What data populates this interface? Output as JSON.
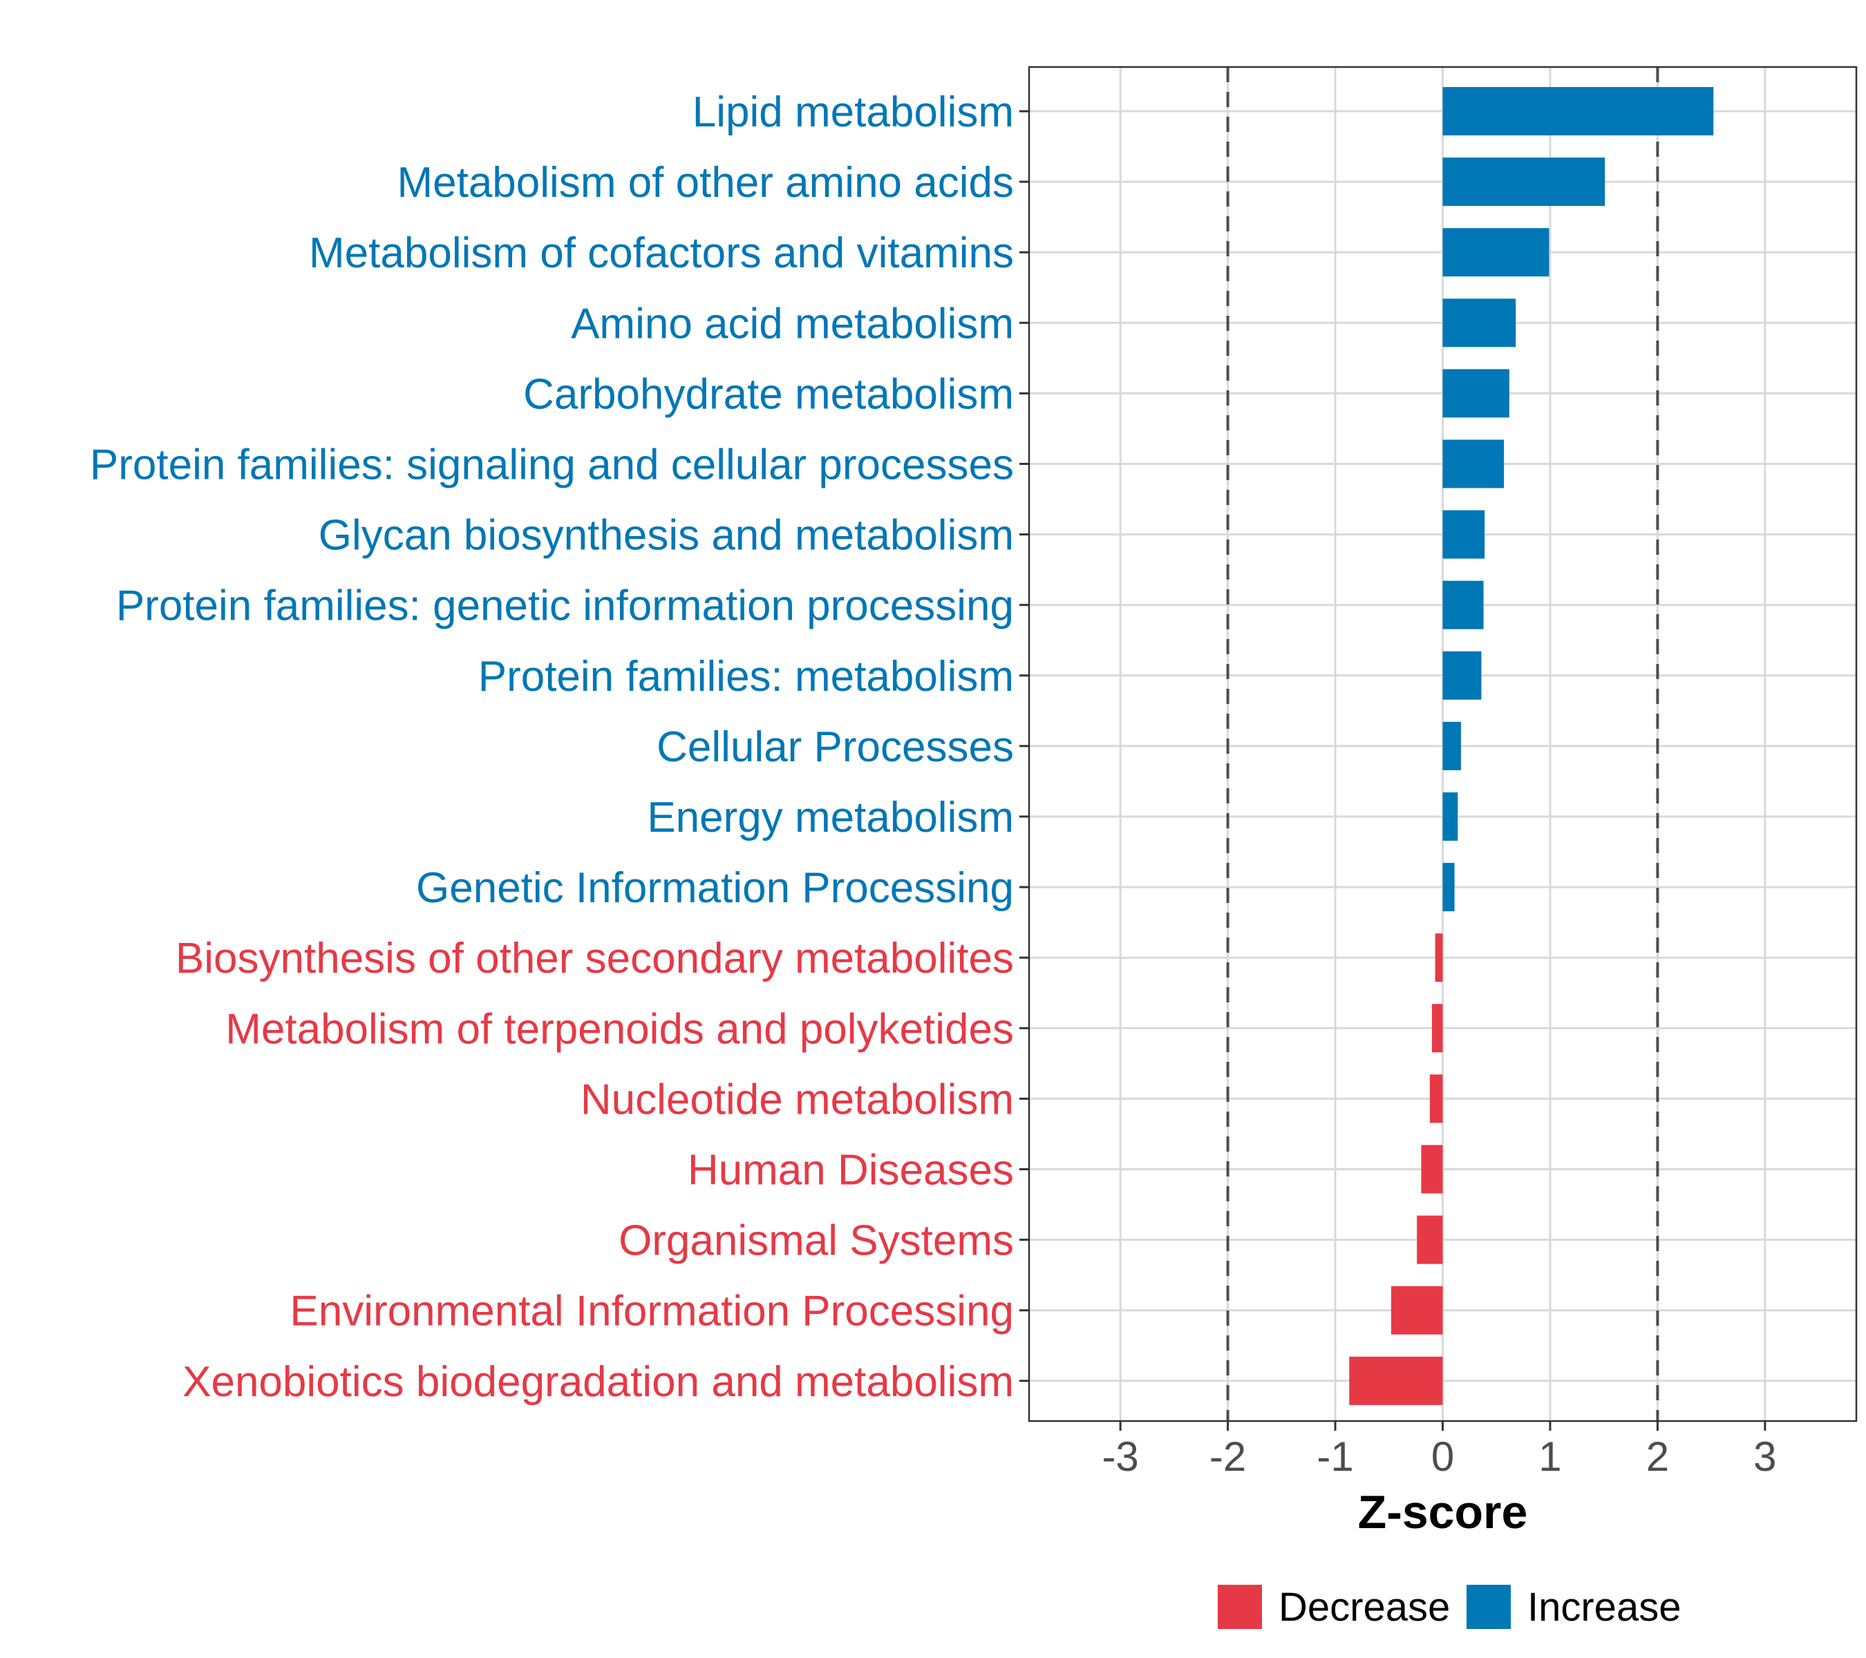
{
  "chart_data": {
    "type": "bar",
    "orientation": "horizontal",
    "categories": [
      "Lipid metabolism",
      "Metabolism of other amino acids",
      "Metabolism of cofactors and vitamins",
      "Amino acid metabolism",
      "Carbohydrate metabolism",
      "Protein families: signaling and cellular processes",
      "Glycan biosynthesis and metabolism",
      "Protein families: genetic information processing",
      "Protein families: metabolism",
      "Cellular Processes",
      "Energy metabolism",
      "Genetic Information Processing",
      "Biosynthesis of other secondary metabolites",
      "Metabolism of terpenoids and polyketides",
      "Nucleotide metabolism",
      "Human Diseases",
      "Organismal Systems",
      "Environmental Information Processing",
      "Xenobiotics biodegradation and metabolism"
    ],
    "values": [
      2.52,
      1.51,
      0.99,
      0.68,
      0.62,
      0.57,
      0.39,
      0.38,
      0.36,
      0.17,
      0.14,
      0.11,
      -0.07,
      -0.1,
      -0.12,
      -0.2,
      -0.24,
      -0.48,
      -0.87
    ],
    "direction": [
      "Increase",
      "Increase",
      "Increase",
      "Increase",
      "Increase",
      "Increase",
      "Increase",
      "Increase",
      "Increase",
      "Increase",
      "Increase",
      "Increase",
      "Decrease",
      "Decrease",
      "Decrease",
      "Decrease",
      "Decrease",
      "Decrease",
      "Decrease"
    ],
    "xlabel": "Z-score",
    "ylabel": "",
    "xlim": [
      -3.85,
      3.85
    ],
    "xticks": [
      -3,
      -2,
      -1,
      0,
      1,
      2,
      3
    ],
    "xtick_labels": [
      "-3",
      "-2",
      "-1",
      "0",
      "1",
      "2",
      "3"
    ],
    "reference_lines": [
      -2,
      2
    ],
    "grid": true,
    "legend": {
      "placement": "bottom",
      "entries": [
        {
          "name": "Decrease",
          "color": "#e63946"
        },
        {
          "name": "Increase",
          "color": "#0077b6"
        }
      ]
    },
    "colors": {
      "Decrease": "#e63946",
      "Increase": "#0077b6"
    }
  }
}
